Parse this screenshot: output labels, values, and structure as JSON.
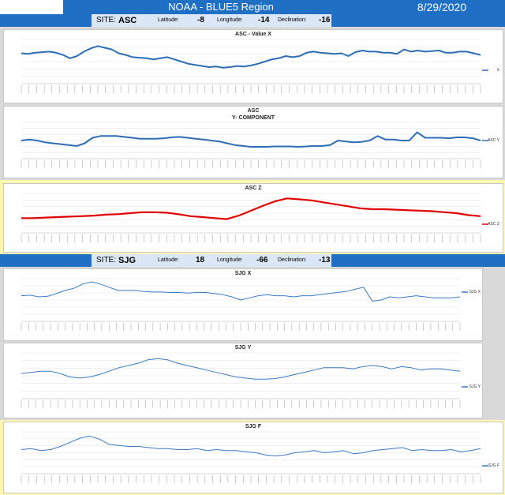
{
  "header": {
    "title": "NOAA - BLUE5 Region",
    "date": "8/29/2020"
  },
  "sites": [
    {
      "label": "SITE:",
      "code": "ASC",
      "latitude_label": "Latitude:",
      "latitude": "-8",
      "longitude_label": "Longitude:",
      "longitude": "-14",
      "declination_label": "Declination:",
      "declination": "-16"
    },
    {
      "label": "SITE:",
      "code": "SJG",
      "latitude_label": "Latitude:",
      "latitude": "18",
      "longitude_label": "Longitude:",
      "longitude": "-66",
      "declination_label": "Declination:",
      "declination": "-13"
    }
  ],
  "colors": {
    "header_blue": "#1f6fc5",
    "asc_line": "#2e6db4",
    "asc_z_line": "#e00000",
    "sjg_line": "#3b79c0",
    "panel_gray": "#d9d9d9",
    "panel_yellow": "#fff7b0"
  },
  "chart_data": [
    {
      "type": "line",
      "title": "ASC - Value X",
      "legend": "X",
      "series": [
        {
          "values": [
            55,
            54,
            56,
            57,
            58,
            56,
            52,
            46,
            50,
            58,
            64,
            68,
            65,
            62,
            55,
            52,
            48,
            47,
            46,
            44,
            46,
            48,
            44,
            40,
            36,
            34,
            32,
            30,
            31,
            29,
            30,
            32,
            31,
            33,
            36,
            40,
            44,
            46,
            50,
            48,
            50,
            56,
            58,
            56,
            55,
            54,
            55,
            50,
            57,
            60,
            58,
            58,
            56,
            56,
            54,
            62,
            58,
            60,
            58,
            59,
            60,
            56,
            56,
            58,
            58,
            55,
            52
          ]
        }
      ]
    },
    {
      "type": "line",
      "title": "ASC",
      "subtitle": "Y- COMPONENT",
      "legend": "ASC Y",
      "series": [
        {
          "values": [
            40,
            42,
            40,
            36,
            34,
            32,
            30,
            28,
            34,
            46,
            50,
            50,
            50,
            48,
            46,
            44,
            44,
            44,
            45,
            47,
            48,
            46,
            44,
            42,
            40,
            38,
            34,
            30,
            28,
            26,
            26,
            26,
            27,
            27,
            27,
            26,
            27,
            28,
            28,
            30,
            40,
            38,
            36,
            37,
            40,
            50,
            42,
            42,
            40,
            40,
            58,
            46,
            46,
            46,
            45,
            47,
            47,
            45,
            40
          ]
        }
      ]
    },
    {
      "type": "line",
      "title": "ASC Z",
      "legend": "ASC Z",
      "series": [
        {
          "values": [
            30,
            30,
            31,
            32,
            33,
            34,
            35,
            37,
            38,
            40,
            42,
            42,
            41,
            38,
            34,
            32,
            30,
            28,
            35,
            45,
            55,
            64,
            70,
            68,
            66,
            62,
            58,
            54,
            50,
            48,
            48,
            47,
            46,
            45,
            44,
            42,
            40,
            36,
            34
          ]
        }
      ]
    },
    {
      "type": "line",
      "title": "SJG X",
      "legend": "SJG X",
      "series": [
        {
          "values": [
            48,
            49,
            46,
            47,
            52,
            58,
            62,
            70,
            74,
            70,
            64,
            58,
            58,
            58,
            56,
            55,
            55,
            54,
            54,
            53,
            54,
            54,
            52,
            50,
            46,
            40,
            44,
            48,
            50,
            48,
            48,
            46,
            48,
            48,
            50,
            52,
            54,
            56,
            60,
            64,
            38,
            40,
            46,
            44,
            46,
            48,
            46,
            44,
            44,
            44,
            46
          ]
        }
      ]
    },
    {
      "type": "line",
      "title": "SJG Y",
      "legend": "SJG Y",
      "series": [
        {
          "values": [
            44,
            46,
            48,
            48,
            44,
            38,
            36,
            38,
            42,
            48,
            54,
            58,
            62,
            68,
            70,
            68,
            62,
            58,
            54,
            50,
            46,
            42,
            38,
            36,
            34,
            34,
            35,
            38,
            42,
            46,
            50,
            54,
            54,
            54,
            52,
            56,
            58,
            56,
            52,
            56,
            54,
            50,
            52,
            52,
            50,
            48
          ]
        }
      ]
    },
    {
      "type": "line",
      "title": "SJG F",
      "legend": "SJG F",
      "series": [
        {
          "values": [
            46,
            48,
            44,
            46,
            52,
            60,
            68,
            72,
            66,
            56,
            54,
            52,
            52,
            50,
            48,
            48,
            46,
            46,
            48,
            44,
            46,
            44,
            44,
            42,
            40,
            36,
            34,
            36,
            40,
            42,
            44,
            40,
            42,
            44,
            38,
            40,
            44,
            46,
            48,
            50,
            44,
            46,
            44,
            44,
            46,
            42,
            44,
            48
          ]
        }
      ]
    }
  ]
}
